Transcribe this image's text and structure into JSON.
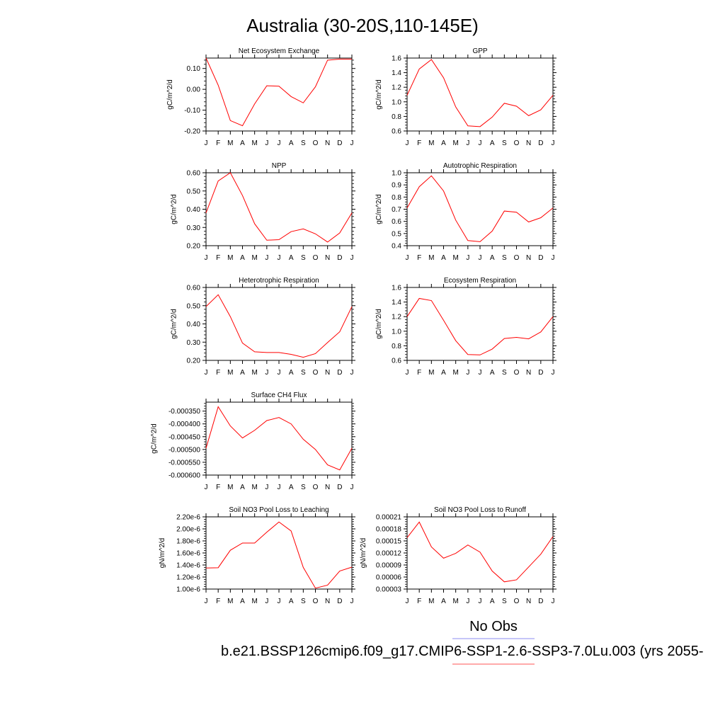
{
  "figure": {
    "title": "Australia (30-20S,110-145E)",
    "legend": {
      "obs_label": "No Obs",
      "obs_color": "#8c8cf0",
      "model_label": "b.e21.BSSP126cmip6.f09_g17.CMIP6-SSP1-2.6-SSP3-7.0Lu.003 (yrs 2055-",
      "model_color": "#ff5555"
    },
    "line_color": "#ff0000"
  },
  "chart_data": [
    {
      "type": "line",
      "title": "Net Ecosystem Exchange",
      "ylabel": "gC/m^2/d",
      "xlabel": "",
      "x": [
        "J",
        "F",
        "M",
        "A",
        "M",
        "J",
        "J",
        "A",
        "S",
        "O",
        "N",
        "D",
        "J"
      ],
      "ylim": [
        -0.2,
        0.15
      ],
      "yticks": [
        -0.2,
        -0.1,
        0.0,
        0.1
      ],
      "yticklabels": [
        "-0.20",
        "-0.10",
        "0.00",
        "0.10"
      ],
      "series": [
        {
          "values": [
            0.15,
            0.02,
            -0.15,
            -0.175,
            -0.07,
            0.017,
            0.015,
            -0.035,
            -0.065,
            0.012,
            0.14,
            0.145,
            0.145
          ]
        }
      ]
    },
    {
      "type": "line",
      "title": "GPP",
      "ylabel": "gC/m^2/d",
      "xlabel": "",
      "x": [
        "J",
        "F",
        "M",
        "A",
        "M",
        "J",
        "J",
        "A",
        "S",
        "O",
        "N",
        "D",
        "J"
      ],
      "ylim": [
        0.6,
        1.6
      ],
      "yticks": [
        0.6,
        0.8,
        1.0,
        1.2,
        1.4,
        1.6
      ],
      "yticklabels": [
        "0.6",
        "0.8",
        "1.0",
        "1.2",
        "1.4",
        "1.6"
      ],
      "series": [
        {
          "values": [
            1.09,
            1.45,
            1.58,
            1.33,
            0.93,
            0.67,
            0.66,
            0.79,
            0.98,
            0.94,
            0.81,
            0.89,
            1.09
          ]
        }
      ]
    },
    {
      "type": "line",
      "title": "NPP",
      "ylabel": "gC/m^2/d",
      "xlabel": "",
      "x": [
        "J",
        "F",
        "M",
        "A",
        "M",
        "J",
        "J",
        "A",
        "S",
        "O",
        "N",
        "D",
        "J"
      ],
      "ylim": [
        0.2,
        0.6
      ],
      "yticks": [
        0.2,
        0.3,
        0.4,
        0.5,
        0.6
      ],
      "yticklabels": [
        "0.20",
        "0.30",
        "0.40",
        "0.50",
        "0.60"
      ],
      "series": [
        {
          "values": [
            0.38,
            0.555,
            0.6,
            0.475,
            0.32,
            0.23,
            0.233,
            0.277,
            0.292,
            0.265,
            0.22,
            0.27,
            0.38
          ]
        }
      ]
    },
    {
      "type": "line",
      "title": "Autotrophic Respiration",
      "ylabel": "gC/m^2/d",
      "xlabel": "",
      "x": [
        "J",
        "F",
        "M",
        "A",
        "M",
        "J",
        "J",
        "A",
        "S",
        "O",
        "N",
        "D",
        "J"
      ],
      "ylim": [
        0.4,
        1.0
      ],
      "yticks": [
        0.4,
        0.5,
        0.6,
        0.7,
        0.8,
        0.9,
        1.0
      ],
      "yticklabels": [
        "0.4",
        "0.5",
        "0.6",
        "0.7",
        "0.8",
        "0.9",
        "1.0"
      ],
      "series": [
        {
          "values": [
            0.71,
            0.885,
            0.975,
            0.85,
            0.61,
            0.442,
            0.433,
            0.52,
            0.685,
            0.675,
            0.595,
            0.63,
            0.71
          ]
        }
      ]
    },
    {
      "type": "line",
      "title": "Heterotrophic Respiration",
      "ylabel": "gC/m^2/d",
      "xlabel": "",
      "x": [
        "J",
        "F",
        "M",
        "A",
        "M",
        "J",
        "J",
        "A",
        "S",
        "O",
        "N",
        "D",
        "J"
      ],
      "ylim": [
        0.2,
        0.6
      ],
      "yticks": [
        0.2,
        0.3,
        0.4,
        0.5,
        0.6
      ],
      "yticklabels": [
        "0.20",
        "0.30",
        "0.40",
        "0.50",
        "0.60"
      ],
      "series": [
        {
          "values": [
            0.495,
            0.56,
            0.44,
            0.295,
            0.247,
            0.243,
            0.243,
            0.233,
            0.217,
            0.237,
            0.298,
            0.357,
            0.495
          ]
        }
      ]
    },
    {
      "type": "line",
      "title": "Ecosystem Respiration",
      "ylabel": "gC/m^2/d",
      "xlabel": "",
      "x": [
        "J",
        "F",
        "M",
        "A",
        "M",
        "J",
        "J",
        "A",
        "S",
        "O",
        "N",
        "D",
        "J"
      ],
      "ylim": [
        0.6,
        1.6
      ],
      "yticks": [
        0.6,
        0.8,
        1.0,
        1.2,
        1.4,
        1.6
      ],
      "yticklabels": [
        "0.6",
        "0.8",
        "1.0",
        "1.2",
        "1.4",
        "1.6"
      ],
      "series": [
        {
          "values": [
            1.2,
            1.45,
            1.42,
            1.15,
            0.87,
            0.68,
            0.675,
            0.755,
            0.9,
            0.915,
            0.895,
            0.99,
            1.2
          ]
        }
      ]
    },
    {
      "type": "line",
      "title": "Surface CH4 Flux",
      "ylabel": "gC/m^2/d",
      "xlabel": "",
      "x": [
        "J",
        "F",
        "M",
        "A",
        "M",
        "J",
        "J",
        "A",
        "S",
        "O",
        "N",
        "D",
        "J"
      ],
      "ylim": [
        -0.0006,
        -0.000315
      ],
      "yticks": [
        -0.0006,
        -0.00055,
        -0.0005,
        -0.00045,
        -0.0004,
        -0.00035
      ],
      "yticklabels": [
        "-0.000600",
        "-0.000550",
        "-0.000500",
        "-0.000450",
        "-0.000400",
        "-0.000350"
      ],
      "series": [
        {
          "values": [
            -0.000495,
            -0.000333,
            -0.000408,
            -0.000455,
            -0.000425,
            -0.000387,
            -0.000375,
            -0.0004,
            -0.00046,
            -0.0005,
            -0.00056,
            -0.00058,
            -0.000495
          ]
        }
      ]
    },
    {
      "type": "line",
      "title": "Soil NO3 Pool Loss to Leaching",
      "ylabel": "gN/m^2/d",
      "xlabel": "",
      "x": [
        "J",
        "F",
        "M",
        "A",
        "M",
        "J",
        "J",
        "A",
        "S",
        "O",
        "N",
        "D",
        "J"
      ],
      "ylim": [
        1e-06,
        2.2e-06
      ],
      "yticks": [
        1e-06,
        1.2e-06,
        1.4e-06,
        1.6e-06,
        1.8e-06,
        2e-06,
        2.2e-06
      ],
      "yticklabels": [
        "1.00e-6",
        "1.20e-6",
        "1.40e-6",
        "1.60e-6",
        "1.80e-6",
        "2.00e-6",
        "2.20e-6"
      ],
      "series": [
        {
          "values": [
            1.35e-06,
            1.355e-06,
            1.645e-06,
            1.765e-06,
            1.765e-06,
            1.945e-06,
            2.115e-06,
            1.965e-06,
            1.36e-06,
            1.015e-06,
            1.065e-06,
            1.3e-06,
            1.365e-06
          ]
        }
      ]
    },
    {
      "type": "line",
      "title": "Soil NO3 Pool Loss to Runoff",
      "ylabel": "gN/m^2/d",
      "xlabel": "",
      "x": [
        "J",
        "F",
        "M",
        "A",
        "M",
        "J",
        "J",
        "A",
        "S",
        "O",
        "N",
        "D",
        "J"
      ],
      "ylim": [
        3e-05,
        0.00021
      ],
      "yticks": [
        3e-05,
        6e-05,
        9e-05,
        0.00012,
        0.00015,
        0.00018,
        0.00021
      ],
      "yticklabels": [
        "0.00003",
        "0.00006",
        "0.00009",
        "0.00012",
        "0.00015",
        "0.00018",
        "0.00021"
      ],
      "series": [
        {
          "values": [
            0.000158,
            0.000197,
            0.000135,
            0.000107,
            0.000119,
            0.00014,
            0.000122,
            7.5e-05,
            4.8e-05,
            5.3e-05,
            8.5e-05,
            0.000117,
            0.000161
          ]
        }
      ]
    }
  ]
}
